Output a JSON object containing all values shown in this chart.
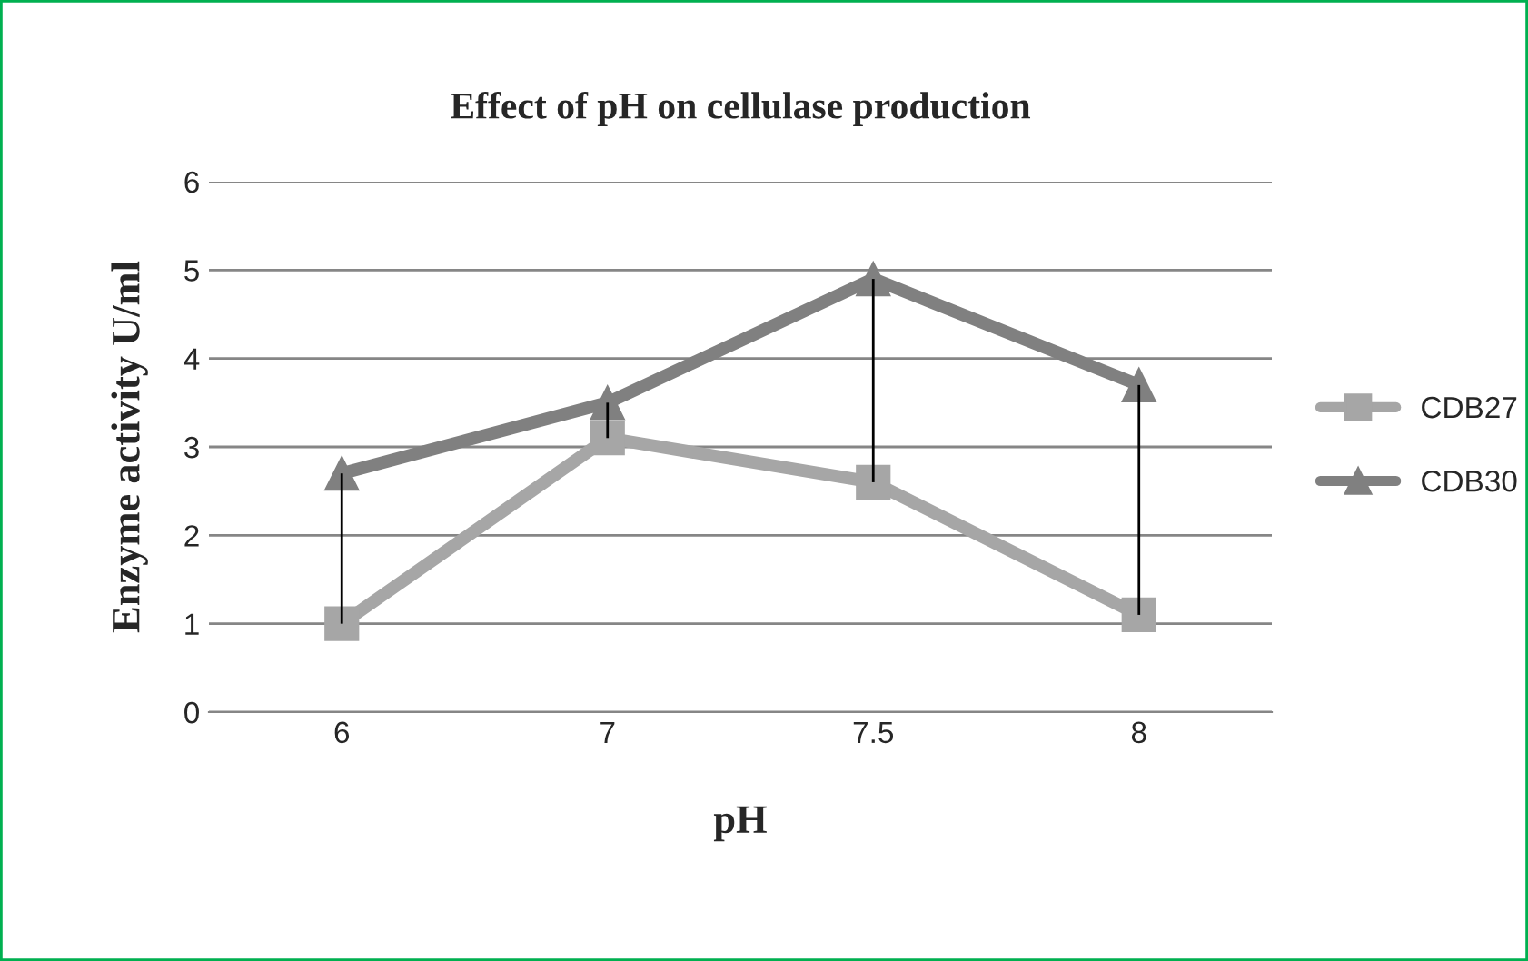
{
  "chart_data": {
    "type": "line",
    "title": "Effect of pH on cellulase production",
    "xlabel": "pH",
    "ylabel": "Enzyme activity U/ml",
    "categories": [
      "6",
      "7",
      "7.5",
      "8"
    ],
    "series": [
      {
        "name": "CDB27",
        "color": "#a6a6a6",
        "marker": "square",
        "values": [
          1.0,
          3.1,
          2.6,
          1.1
        ],
        "errors": [
          [
            1.0,
            2.7
          ],
          [
            3.1,
            3.5
          ],
          [
            2.6,
            4.9
          ],
          [
            1.1,
            3.7
          ]
        ]
      },
      {
        "name": "CDB30",
        "color": "#808080",
        "marker": "triangle",
        "values": [
          2.7,
          3.5,
          4.9,
          3.7
        ]
      }
    ],
    "ylim": [
      0,
      6
    ],
    "yticks": [
      0,
      1,
      2,
      3,
      4,
      5,
      6
    ],
    "grid": "y",
    "legend": "right",
    "line_style": "solid"
  }
}
